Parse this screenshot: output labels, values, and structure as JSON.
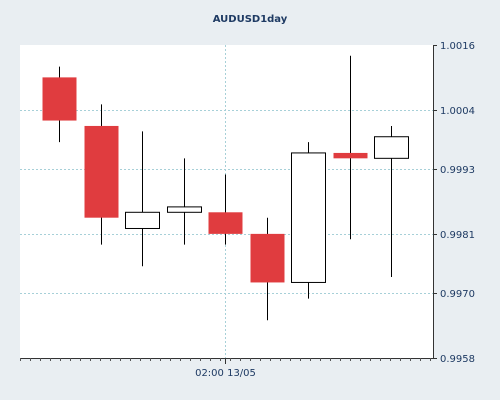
{
  "chart_data": {
    "type": "candlestick",
    "title": "AUDUSD1day",
    "xlabel": "",
    "ylabel": "",
    "x_tick_labels": [
      "02:00 13/05"
    ],
    "y_tick_labels": [
      "0.9958",
      "0.9970",
      "0.9981",
      "0.9993",
      "1.0004",
      "1.0016"
    ],
    "ylim": [
      0.9958,
      1.0016
    ],
    "grid": true,
    "legend": "none",
    "colors": {
      "background": "#e9eef2",
      "plot_background": "#ffffff",
      "bearish": "#e03c3f",
      "bullish": "#ffffff",
      "outline": "#000000",
      "grid": "#a7d0d8",
      "axis_text": "#1e3a63"
    },
    "candles": [
      {
        "open": 1.001,
        "high": 1.0012,
        "low": 0.9998,
        "close": 1.0002
      },
      {
        "open": 1.0001,
        "high": 1.0005,
        "low": 0.9979,
        "close": 0.9984
      },
      {
        "open": 0.9982,
        "high": 1.0,
        "low": 0.9975,
        "close": 0.9985
      },
      {
        "open": 0.9985,
        "high": 0.9995,
        "low": 0.9979,
        "close": 0.9986
      },
      {
        "open": 0.9985,
        "high": 0.9992,
        "low": 0.9979,
        "close": 0.9981
      },
      {
        "open": 0.9981,
        "high": 0.9984,
        "low": 0.9965,
        "close": 0.9972
      },
      {
        "open": 0.9972,
        "high": 0.9998,
        "low": 0.9969,
        "close": 0.9996
      },
      {
        "open": 0.9996,
        "high": 1.0014,
        "low": 0.998,
        "close": 0.9995
      },
      {
        "open": 0.9995,
        "high": 1.0001,
        "low": 0.9973,
        "close": 0.9999
      }
    ]
  }
}
